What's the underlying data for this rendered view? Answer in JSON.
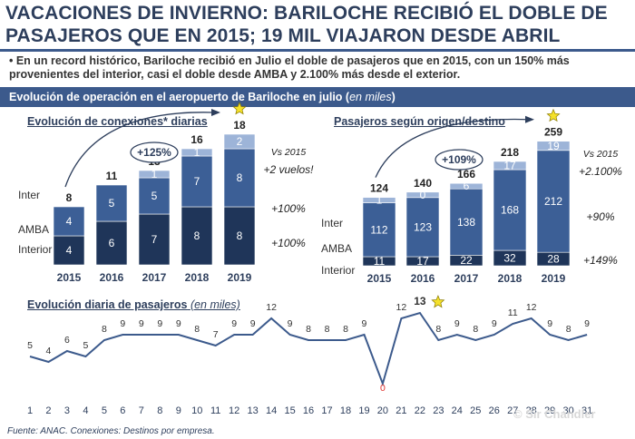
{
  "title": "VACACIONES DE INVIERNO: BARILOCHE RECIBIÓ EL DOBLE DE PASAJEROS QUE EN 2015; 19 MIL VIAJARON DESDE ABRIL",
  "bullet": "• En un record histórico, Bariloche recibió en Julio el doble de pasajeros que en 2015, con un 150% más provenientes del interior, casi el doble desde AMBA y 2.100% más desde el exterior.",
  "band": {
    "text": "Evolución de operación en el aeropuerto de Bariloche en julio (",
    "italic": "en miles",
    "close": ")"
  },
  "footer": "Fuente: ANAC.  Conexiones: Destinos por empresa.",
  "watermark": "© Sir Chandler",
  "colors": {
    "interior": "#1f3559",
    "amba": "#3c5f96",
    "inter": "#9db4d8",
    "navy": "#2d3e5c",
    "line": "#3c5a8c",
    "star": "#f5e12b",
    "red": "#e0302c"
  },
  "chart_data": [
    {
      "type": "bar",
      "title": "Evolución de conexiones* diarias",
      "categories": [
        "2015",
        "2016",
        "2017",
        "2018",
        "2019"
      ],
      "series": [
        {
          "name": "Interior",
          "values": [
            4,
            6,
            7,
            8,
            8
          ]
        },
        {
          "name": "AMBA",
          "values": [
            4,
            5,
            5,
            7,
            8
          ]
        },
        {
          "name": "Inter",
          "values": [
            0,
            0,
            1,
            1,
            2
          ]
        }
      ],
      "totals": [
        8,
        11,
        13,
        16,
        18
      ],
      "growth_label": "+125%",
      "vs_title": "Vs 2015",
      "vs_labels": [
        "+2 vuelos!",
        "+100%",
        "+100%"
      ],
      "star_on": "2019"
    },
    {
      "type": "bar",
      "title": "Pasajeros según origen/destino",
      "categories": [
        "2015",
        "2016",
        "2017",
        "2018",
        "2019"
      ],
      "series": [
        {
          "name": "Interior",
          "values": [
            11,
            17,
            22,
            32,
            28
          ]
        },
        {
          "name": "AMBA",
          "values": [
            112,
            123,
            138,
            168,
            212
          ]
        },
        {
          "name": "Inter",
          "values": [
            1,
            0,
            6,
            17,
            19
          ]
        }
      ],
      "totals": [
        124,
        140,
        166,
        218,
        259
      ],
      "growth_label": "+109%",
      "vs_title": "Vs 2015",
      "vs_labels": [
        "+2.100%",
        "+90%",
        "+149%"
      ],
      "star_on": "2019"
    },
    {
      "type": "line",
      "title": "Evolución diaria de pasajeros",
      "title_unit": "(en miles)",
      "x": [
        1,
        2,
        3,
        4,
        5,
        6,
        7,
        8,
        9,
        10,
        11,
        12,
        13,
        14,
        15,
        16,
        17,
        18,
        19,
        20,
        21,
        22,
        23,
        24,
        25,
        26,
        27,
        28,
        29,
        30,
        31
      ],
      "values": [
        5,
        4,
        6,
        5,
        8,
        9,
        9,
        9,
        9,
        8,
        7,
        9,
        9,
        12,
        9,
        8,
        8,
        8,
        9,
        0,
        12,
        13,
        8,
        9,
        8,
        9,
        11,
        12,
        9,
        8,
        9
      ],
      "highlight_day": 22,
      "min_day": 20
    }
  ]
}
